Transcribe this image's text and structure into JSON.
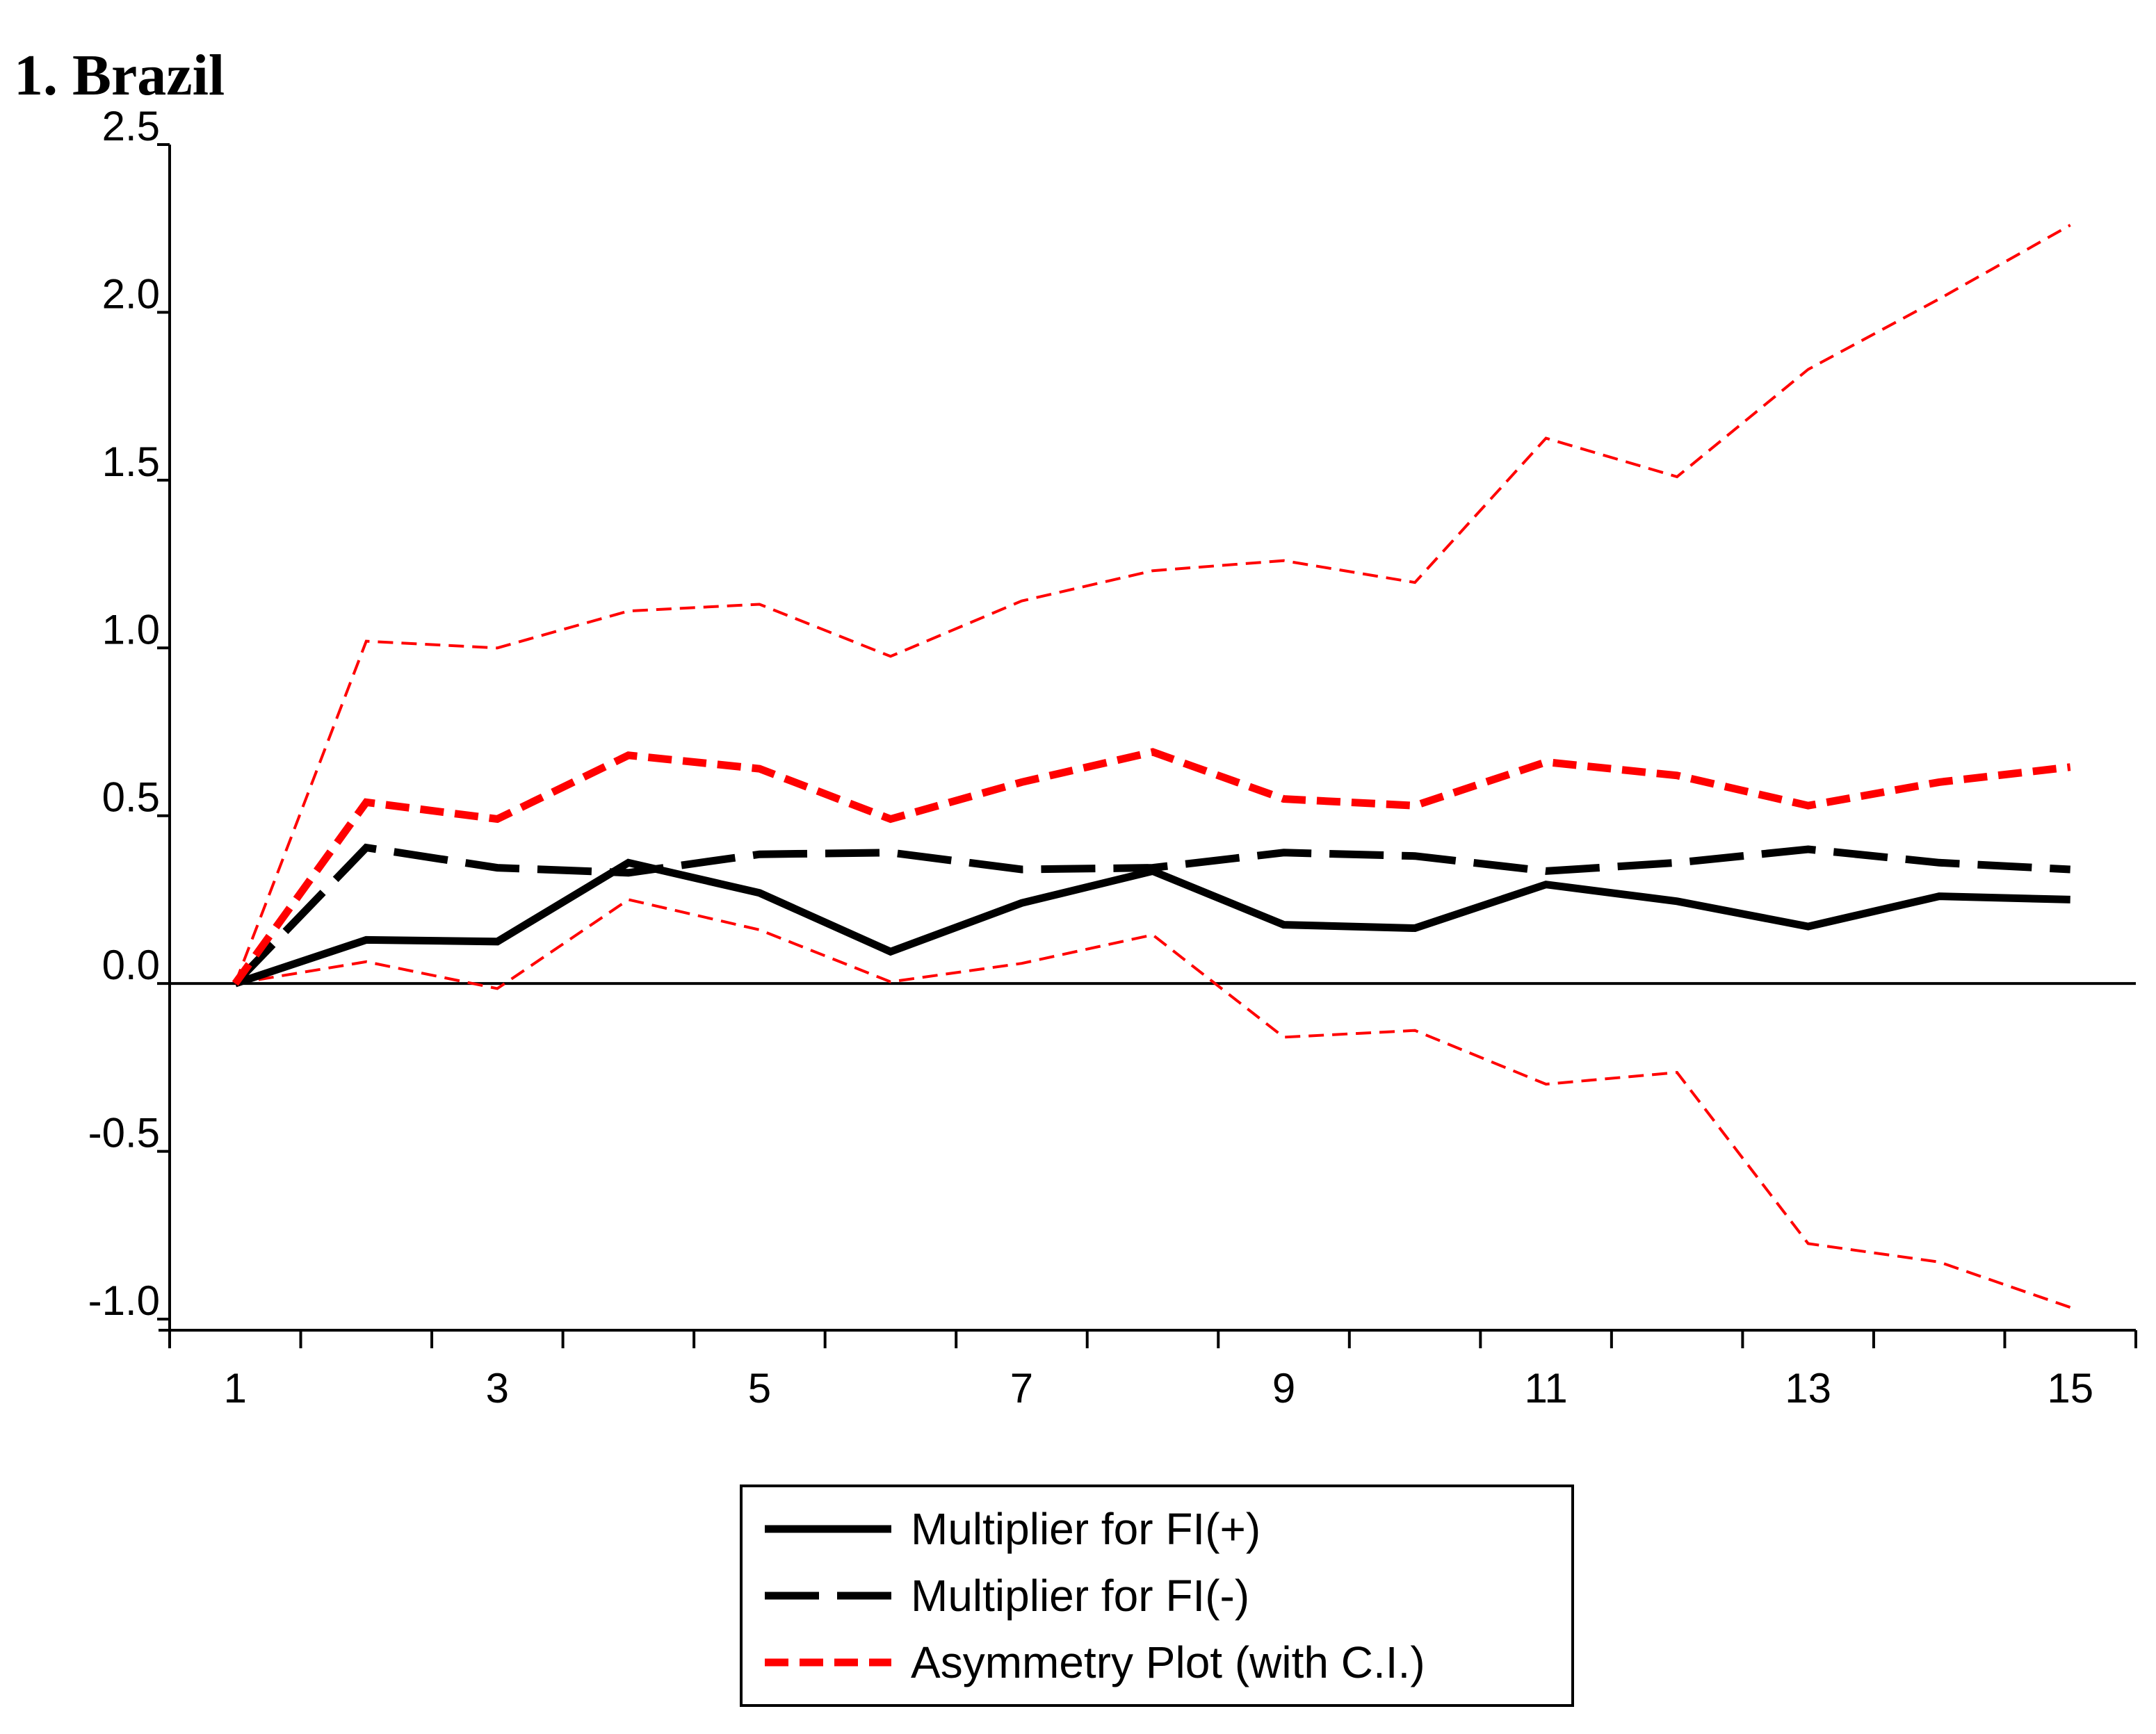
{
  "chart_data": {
    "type": "line",
    "title": "1. Brazil",
    "xlabel": "",
    "ylabel": "",
    "x": [
      1,
      2,
      3,
      4,
      5,
      6,
      7,
      8,
      9,
      10,
      11,
      12,
      13,
      14,
      15
    ],
    "x_tick_labels": [
      "1",
      "3",
      "5",
      "7",
      "9",
      "11",
      "13",
      "15"
    ],
    "y_tick_labels": [
      "2.5",
      "2.0",
      "1.5",
      "1.0",
      "0.5",
      "0.0",
      "-0.5",
      "-1.0"
    ],
    "ylim": [
      -1.0,
      2.5
    ],
    "xlim": [
      0.5,
      15.5
    ],
    "zero_line": true,
    "series": [
      {
        "name": "Multiplier for FI(+)",
        "style": "solid-thick",
        "color": "#000000",
        "values": [
          0.0,
          0.13,
          0.125,
          0.36,
          0.27,
          0.095,
          0.24,
          0.335,
          0.175,
          0.165,
          0.295,
          0.245,
          0.17,
          0.26,
          0.25
        ]
      },
      {
        "name": "Multiplier for FI(-)",
        "style": "long-dash-thick",
        "color": "#000000",
        "values": [
          0.0,
          0.405,
          0.345,
          0.33,
          0.385,
          0.39,
          0.34,
          0.345,
          0.39,
          0.38,
          0.335,
          0.36,
          0.4,
          0.36,
          0.34
        ]
      },
      {
        "name": "Asymmetry Plot (with C.I.)",
        "style": "short-dash-thick",
        "color": "#ff0000",
        "values": [
          0.0,
          0.54,
          0.49,
          0.68,
          0.64,
          0.49,
          0.6,
          0.69,
          0.55,
          0.53,
          0.66,
          0.62,
          0.53,
          0.6,
          0.645
        ]
      },
      {
        "name": "Asymmetry upper C.I.",
        "style": "short-dash-thin",
        "color": "#ff0000",
        "legend": false,
        "values": [
          0.0,
          1.02,
          1.0,
          1.11,
          1.13,
          0.975,
          1.14,
          1.23,
          1.26,
          1.195,
          1.625,
          1.51,
          1.83,
          2.04,
          2.26
        ]
      },
      {
        "name": "Asymmetry lower C.I.",
        "style": "short-dash-thin",
        "color": "#ff0000",
        "legend": false,
        "values": [
          0.0,
          0.065,
          -0.015,
          0.25,
          0.16,
          0.005,
          0.06,
          0.145,
          -0.16,
          -0.14,
          -0.3,
          -0.265,
          -0.775,
          -0.83,
          -0.965
        ]
      }
    ],
    "legend": {
      "placement": "bottom-center",
      "entries": [
        "Multiplier for FI(+)",
        "Multiplier for FI(-)",
        "Asymmetry Plot (with C.I.)"
      ]
    }
  }
}
